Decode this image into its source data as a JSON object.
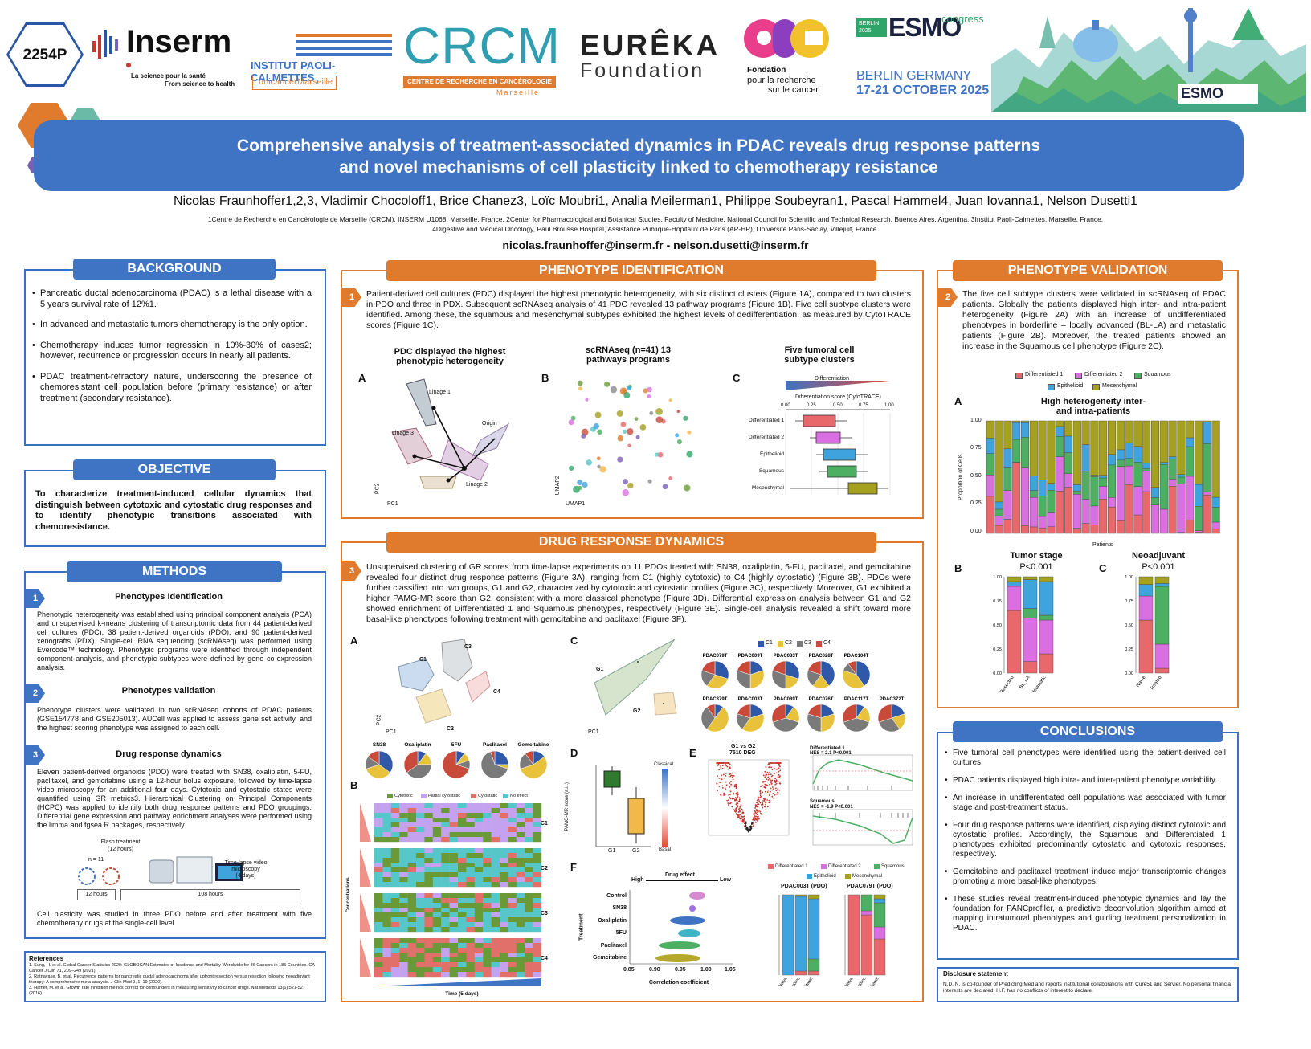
{
  "poster_id": "2254P",
  "logos": {
    "inserm": "Inserm",
    "inserm_sub1": "La science pour la santé",
    "inserm_sub2": "From science to health",
    "ipc": "INSTITUT PAOLI-CALMETTES",
    "unicancer": "unicancer",
    "marseille": "Marseille",
    "crcm": "CRCM",
    "crcm_sub": "CENTRE DE RECHERCHE EN CANCÉROLOGIE",
    "crcm_city": "Marseille",
    "eureka1": "EURÊKA",
    "eureka2": "Foundation",
    "arc": "arc",
    "arc_sub1": "Fondation",
    "arc_sub2": "pour la recherche",
    "arc_sub3": "sur le cancer",
    "esmo_tag": "BERLIN 2025",
    "esmo": "ESMO",
    "esmo_congress": "congress",
    "esmo_loc": "BERLIN GERMANY",
    "esmo_dates": "17-21 OCTOBER 2025",
    "esmo_small": "ESMO"
  },
  "title_line1": "Comprehensive analysis of treatment-associated dynamics in PDAC reveals drug response patterns",
  "title_line2": "and novel mechanisms of cell plasticity linked to chemotherapy resistance",
  "authors": "Nicolas Fraunhoffer1,2,3, Vladimir Chocoloff1, Brice Chanez3, Loïc Moubri1, Analia Meilerman1, Philippe Soubeyran1, Pascal Hammel4, Juan Iovanna1, Nelson Dusetti1",
  "affil1": "1Centre de Recherche en Cancérologie de Marseille (CRCM), INSERM U1068, Marseille, France. 2Center for Pharmacological and Botanical Studies, Faculty of Medicine, National Council for Scientific and Technical Research, Buenos Aires, Argentina. 3Institut Paoli-Calmettes, Marseille, France.",
  "affil2": "4Digestive and Medical Oncology, Paul Brousse Hospital, Assistance Publique-Hôpitaux de Paris (AP-HP), Université Paris-Saclay, Villejuif, France.",
  "emails": "nicolas.fraunhoffer@inserm.fr - nelson.dusetti@inserm.fr",
  "background": {
    "header": "BACKGROUND",
    "items": [
      "Pancreatic ductal adenocarcinoma (PDAC) is a lethal disease with a 5 years survival rate of 12%1.",
      "In advanced and metastatic tumors chemotherapy is the only option.",
      "Chemotherapy induces tumor regression in 10%-30% of cases2; however, recurrence or progression occurs in nearly all patients.",
      "PDAC treatment-refractory nature, underscoring the presence of chemoresistant cell population before (primary resistance) or after treatment (secondary resistance)."
    ]
  },
  "objective": {
    "header": "OBJECTIVE",
    "text": "To characterize treatment-induced cellular dynamics that distinguish between cytotoxic and cytostatic drug responses and to identify phenotypic transitions associated with chemoresistance."
  },
  "methods": {
    "header": "METHODS",
    "s1_title": "Phenotypes Identification",
    "s1_text": "Phenotypic heterogeneity was established using principal component analysis (PCA) and unsupervised k-means clustering of transcriptomic data from 44 patient-derived cell cultures (PDC), 38 patient-derived organoids (PDO), and 90 patient-derived xenografts (PDX). Single-cell RNA sequencing (scRNAseq) was performed using Evercode™ technology. Phenotypic programs were identified through independent component analysis, and phenotypic subtypes were defined by gene co-expression analysis.",
    "s2_title": "Phenotypes validation",
    "s2_text": "Phenotype clusters were validated in two scRNAseq cohorts of PDAC patients (GSE154778 and GSE205013). AUCell was applied to assess gene set activity, and the highest scoring phenotype was assigned to each cell.",
    "s3_title": "Drug response dynamics",
    "s3_text": "Eleven patient-derived organoids (PDO) were treated with SN38, oxaliplatin, 5-FU, paclitaxel, and gemcitabine using a 12-hour bolus exposure, followed by time-lapse video microscopy for an additional four days. Cytotoxic and cytostatic states were quantified using GR metrics3. Hierarchical Clustering on Principal Components (HCPC) was applied to identify both drug response patterns and PDO groupings. Differential gene expression and pathway enrichment analyses were performed using the limma and fgsea R packages, respectively.",
    "diag_flash": "Flash treatment",
    "diag_flash2": "(12 hours)",
    "diag_n": "n = 11",
    "diag_tl": "Time-lapse video",
    "diag_tl2": "microscopy",
    "diag_tl3": "(4 days)",
    "diag_12": "12 hours",
    "diag_108": "108 hours",
    "s3_foot": "Cell plasticity was studied in three PDO before and after treatment with five chemotherapy drugs at the single-cell level"
  },
  "references": {
    "header": "References",
    "items": [
      "1.   Sung, H. et al. Global Cancer Statistics 2020: GLOBOCAN Estimates of Incidence and Mortality Worldwide for 36 Cancers in 185 Countries. CA Cancer J Clin 71, 209–249 (2021).",
      "2.   Ratnayake, B. et al. Recurrence patterns for pancreatic ductal adenocarcinoma after upfront resection versus resection following neoadjuvant therapy: A comprehensive meta-analysis. J Clin Med 9, 1–19 (2020).",
      "3.   Hafner, M. et al. Growth rate inhibition metrics correct for confounders in measuring sensitivity to cancer drugs. Nat Methods 13(6):521-527 (2016)."
    ]
  },
  "pheno_id": {
    "header": "PHENOTYPE IDENTIFICATION",
    "num": "1",
    "text": "Patient-derived cell cultures (PDC) displayed the highest phenotypic heterogeneity, with six distinct clusters (Figure 1A), compared to two clusters in PDO and three in PDX. Subsequent scRNAseq analysis of 41 PDC revealed 13 pathway programs (Figure 1B). Five cell subtype clusters were identified. Among these, the squamous and mesenchymal subtypes exhibited the highest levels of dedifferentiation, as measured by CytoTRACE scores (Figure 1C).",
    "figA_title": "PDC displayed the highest phenotypic heterogeneity",
    "figB_title": "scRNAseq (n=41) 13 pathways programs",
    "figC_title": "Five tumoral cell subtype clusters",
    "lin1": "Linage 1",
    "lin2": "Linage 2",
    "lin3": "Linage 3",
    "origin": "Origin",
    "pc1": "PC1",
    "pc2": "PC2",
    "umap1": "UMAP1",
    "umap2": "UMAP2",
    "diff": "Differentiation",
    "diff_axis": "Differentiation score (CytoTRACE)",
    "ticks": [
      "0.00",
      "0.25",
      "0.50",
      "0.75",
      "1.00"
    ],
    "box_labels": [
      "Differentiated 1",
      "Differentiated 2",
      "Epithelioid",
      "Squamous",
      "Mesenchymal"
    ],
    "labA": "A",
    "labB": "B",
    "labC": "C"
  },
  "drug": {
    "header": "DRUG RESPONSE DYNAMICS",
    "num": "3",
    "text": "Unsupervised clustering of GR scores from time-lapse experiments on 11 PDOs treated with SN38, oxaliplatin, 5-FU, paclitaxel, and gemcitabine revealed four distinct drug response patterns (Figure 3A), ranging from C1 (highly cytotoxic) to C4 (highly cytostatic) (Figure 3B). PDOs were further classified into two groups, G1 and G2, characterized by cytotoxic and cytostatic profiles (Figure 3C), respectively. Moreover, G1 exhibited a higher PAMG-MR score than G2, consistent with a more classical phenotype (Figure 3D). Differential expression analysis between G1 and G2 showed enrichment of Differentiated 1 and Squamous phenotypes, respectively (Figure 3E). Single-cell analysis revealed a shift toward more basal-like phenotypes following treatment with gemcitabine and paclitaxel (Figure 3F).",
    "c_labels": [
      "C1",
      "C2",
      "C3",
      "C4"
    ],
    "drugs": [
      "SN38",
      "Oxaliplatin",
      "5FU",
      "Paclitaxel",
      "Gemcitabine"
    ],
    "legendB": [
      "Cytotoxic",
      "Partial cytostatic",
      "Cytostatic",
      "No effect"
    ],
    "conc": "Concentrations",
    "time": "Time (5 days)",
    "g1": "G1",
    "g2": "G2",
    "pdo_row1": [
      "PDAC079T",
      "PDAC009T",
      "PDAC083T",
      "PDAC028T",
      "PDAC104T"
    ],
    "pdo_row2": [
      "PDAC379T",
      "PDAC003T",
      "PDAC089T",
      "PDAC076T",
      "PDAC117T",
      "PDAC372T"
    ],
    "d_ylabel": "PAMG-MR score (a.u.)",
    "d_classical": "Classical",
    "d_basal": "Basal",
    "e_title": "G1 vs G2",
    "e_sub": "7510 DEG",
    "e_gsea1": "Differentiated 1",
    "e_nes1": "NES = 2.1 P<0.001",
    "e_gsea2": "Squamous",
    "e_nes2": "NES = -1.9 P<0.001",
    "f_effect": "Drug effect",
    "f_high": "High",
    "f_low": "Low",
    "f_treat": "Treatment",
    "f_xlabel": "Correlation coefficient",
    "f_rows": [
      "Control",
      "SN38",
      "Oxaliplatin",
      "5FU",
      "Paclitaxel",
      "Gemcitabine"
    ],
    "f_ticks": [
      "0.85",
      "0.90",
      "0.95",
      "1.00",
      "1.05"
    ],
    "f_pdo1": "PDAC003T (PDO)",
    "f_pdo2": "PDAC079T (PDO)",
    "f_x": [
      "Naive",
      "Gemcitabine",
      "Paclitaxel"
    ],
    "labA": "A",
    "labB": "B",
    "labC": "C",
    "labD": "D",
    "labE": "E",
    "labF": "F"
  },
  "pheno_val": {
    "header": "PHENOTYPE VALIDATION",
    "num": "2",
    "text": "The five cell subtype clusters were validated in scRNAseq of PDAC patients. Globally the patients displayed high inter- and intra-patient heterogeneity (Figure 2A) with an increase of undifferentiated phenotypes in borderline – locally advanced (BL-LA) and metastatic patients (Figure 2B). Moreover, the treated patients showed an increase in the Squamous cell phenotype (Figure 2C).",
    "legend": [
      "Differentiated 1",
      "Differentiated 2",
      "Squamous",
      "Epithelioid",
      "Mesenchymal"
    ],
    "a_title": "High heterogeneity inter- and intra-patients",
    "a_x": "Patients",
    "ylabel": "Proportion of Cells",
    "yt": [
      "1.00",
      "0.75",
      "0.50",
      "0.25",
      "0.00"
    ],
    "b_title": "Tumor stage",
    "b_p": "P<0.001",
    "b_x": [
      "Resected",
      "BL_LA",
      "Metastatic"
    ],
    "c_title": "Neoadjuvant",
    "c_p": "P<0.001",
    "c_x": [
      "Naive",
      "Treated"
    ],
    "labA": "A",
    "labB": "B",
    "labC": "C"
  },
  "conclusions": {
    "header": "CONCLUSIONS",
    "items": [
      "Five tumoral cell phenotypes were identified using the patient-derived cell cultures.",
      "PDAC patients displayed high intra- and inter-patient phenotype variability.",
      "An increase in undifferentiated cell populations was associated with tumor stage and post-treatment status.",
      "Four drug response patterns were identified, displaying distinct cytotoxic and cytostatic profiles. Accordingly, the Squamous and Differentiated 1 phenotypes exhibited predominantly cytostatic and cytotoxic responses, respectively.",
      "Gemcitabine and paclitaxel treatment induce major transcriptomic changes promoting a more basal-like phenotypes.",
      "These studies reveal treatment-induced phenotypic dynamics and lay the foundation for PANCprofiler, a predictive deconvolution algorithm aimed at mapping intratumoral phenotypes and guiding treatment personalization in PDAC."
    ]
  },
  "disclosure": {
    "header": "Disclosure statement",
    "text": "N.D. N. is co-founder of Predicting Med and reports institutional collaborations with Cure51 and Servier. No personal financial interests are declared. H.F. has no conflicts of interest to declare."
  },
  "colors": {
    "blue": "#3f73c4",
    "orange": "#e07a2c",
    "d1": "#e8686b",
    "d2": "#d96fe0",
    "sq": "#4caf62",
    "ep": "#3fa3dd",
    "me": "#a5a020",
    "c1": "#2f58a8",
    "c2": "#e8c23a",
    "c3": "#7a7a7a",
    "c4": "#c84a3a"
  }
}
